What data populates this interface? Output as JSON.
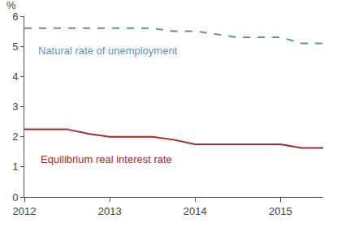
{
  "chart_data": {
    "type": "line",
    "ylabel": "%",
    "x": [
      2012,
      2012.25,
      2012.5,
      2012.75,
      2013,
      2013.25,
      2013.5,
      2013.75,
      2014,
      2014.25,
      2014.5,
      2014.75,
      2015,
      2015.25,
      2015.5
    ],
    "series": [
      {
        "name": "Natural rate of unemployment",
        "color": "#5b93ad",
        "line_style": "dashed",
        "values": [
          5.6,
          5.6,
          5.6,
          5.6,
          5.6,
          5.6,
          5.6,
          5.5,
          5.5,
          5.4,
          5.3,
          5.3,
          5.3,
          5.1,
          5.1
        ]
      },
      {
        "name": "Equilibrium real interest rate",
        "color": "#a52a2a",
        "line_style": "solid",
        "values": [
          2.25,
          2.25,
          2.25,
          2.1,
          2.0,
          2.0,
          2.0,
          1.9,
          1.75,
          1.75,
          1.75,
          1.75,
          1.75,
          1.625,
          1.625
        ]
      }
    ],
    "xlim": [
      2012,
      2015.5
    ],
    "xticks": [
      2012,
      2013,
      2014,
      2015
    ],
    "ylim": [
      0,
      6
    ],
    "yticks": [
      0,
      1,
      2,
      3,
      4,
      5,
      6
    ],
    "grid": false
  }
}
